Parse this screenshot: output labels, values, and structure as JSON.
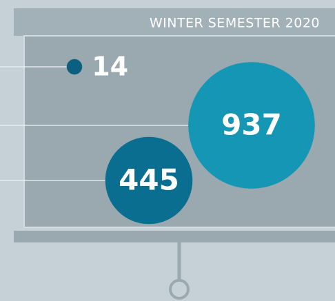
{
  "chart_data": {
    "type": "bubble",
    "title": "WINTER SEMESTER 2020",
    "values": [
      14,
      937,
      445
    ],
    "colors": [
      "#0c5f7e",
      "#1596b5",
      "#0a6e91"
    ]
  }
}
